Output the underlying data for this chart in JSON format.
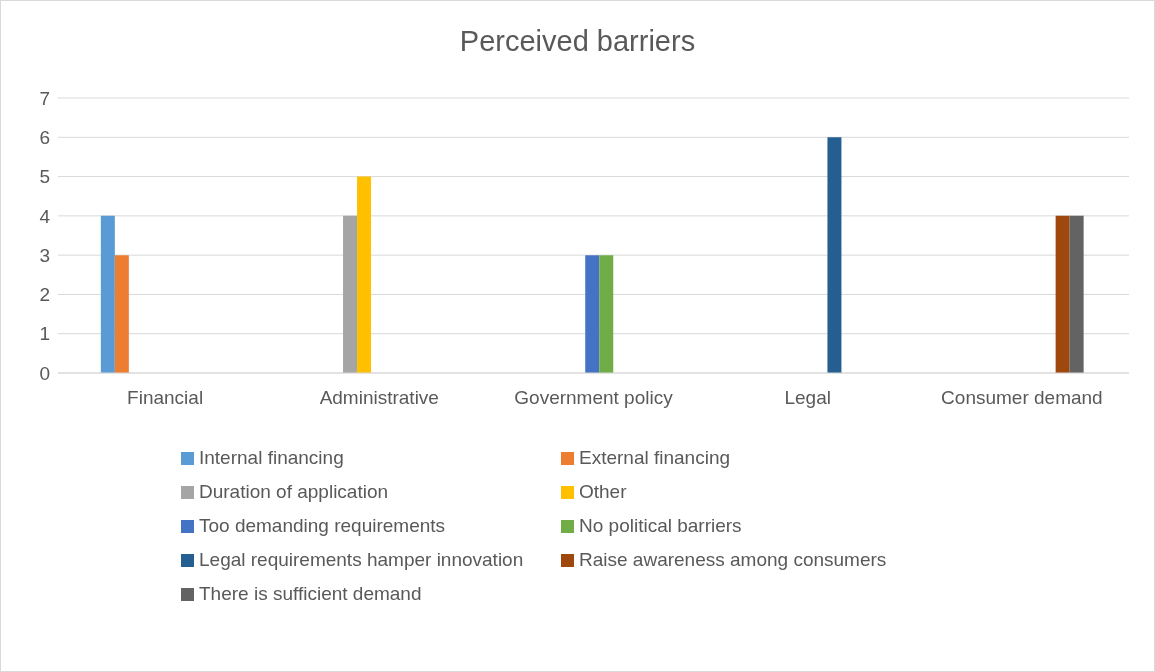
{
  "chart_data": {
    "type": "bar",
    "title": "Perceived barriers",
    "categories": [
      "Financial",
      "Administrative",
      "Government policy",
      "Legal",
      "Consumer demand"
    ],
    "series": [
      {
        "name": "Internal financing",
        "color": "#5b9bd5",
        "values": [
          4,
          null,
          null,
          null,
          null
        ]
      },
      {
        "name": "External financing",
        "color": "#ed7d31",
        "values": [
          3,
          null,
          null,
          null,
          null
        ]
      },
      {
        "name": "Duration of application",
        "color": "#a5a5a5",
        "values": [
          null,
          4,
          null,
          null,
          null
        ]
      },
      {
        "name": "Other",
        "color": "#ffc000",
        "values": [
          null,
          5,
          null,
          null,
          null
        ]
      },
      {
        "name": "Too demanding requirements",
        "color": "#4472c4",
        "values": [
          null,
          null,
          3,
          null,
          null
        ]
      },
      {
        "name": "No political barriers",
        "color": "#70ad47",
        "values": [
          null,
          null,
          3,
          null,
          null
        ]
      },
      {
        "name": "Legal requirements hamper innovation",
        "color": "#255e91",
        "values": [
          null,
          null,
          null,
          6,
          null
        ]
      },
      {
        "name": "Raise awareness among consumers",
        "color": "#9e480e",
        "values": [
          null,
          null,
          null,
          null,
          4
        ]
      },
      {
        "name": "There is sufficient demand",
        "color": "#636363",
        "values": [
          null,
          null,
          null,
          null,
          4
        ]
      }
    ],
    "ylim": [
      0,
      7
    ],
    "yticks": [
      0,
      1,
      2,
      3,
      4,
      5,
      6,
      7
    ],
    "grid": "y",
    "legend": "bottom"
  }
}
